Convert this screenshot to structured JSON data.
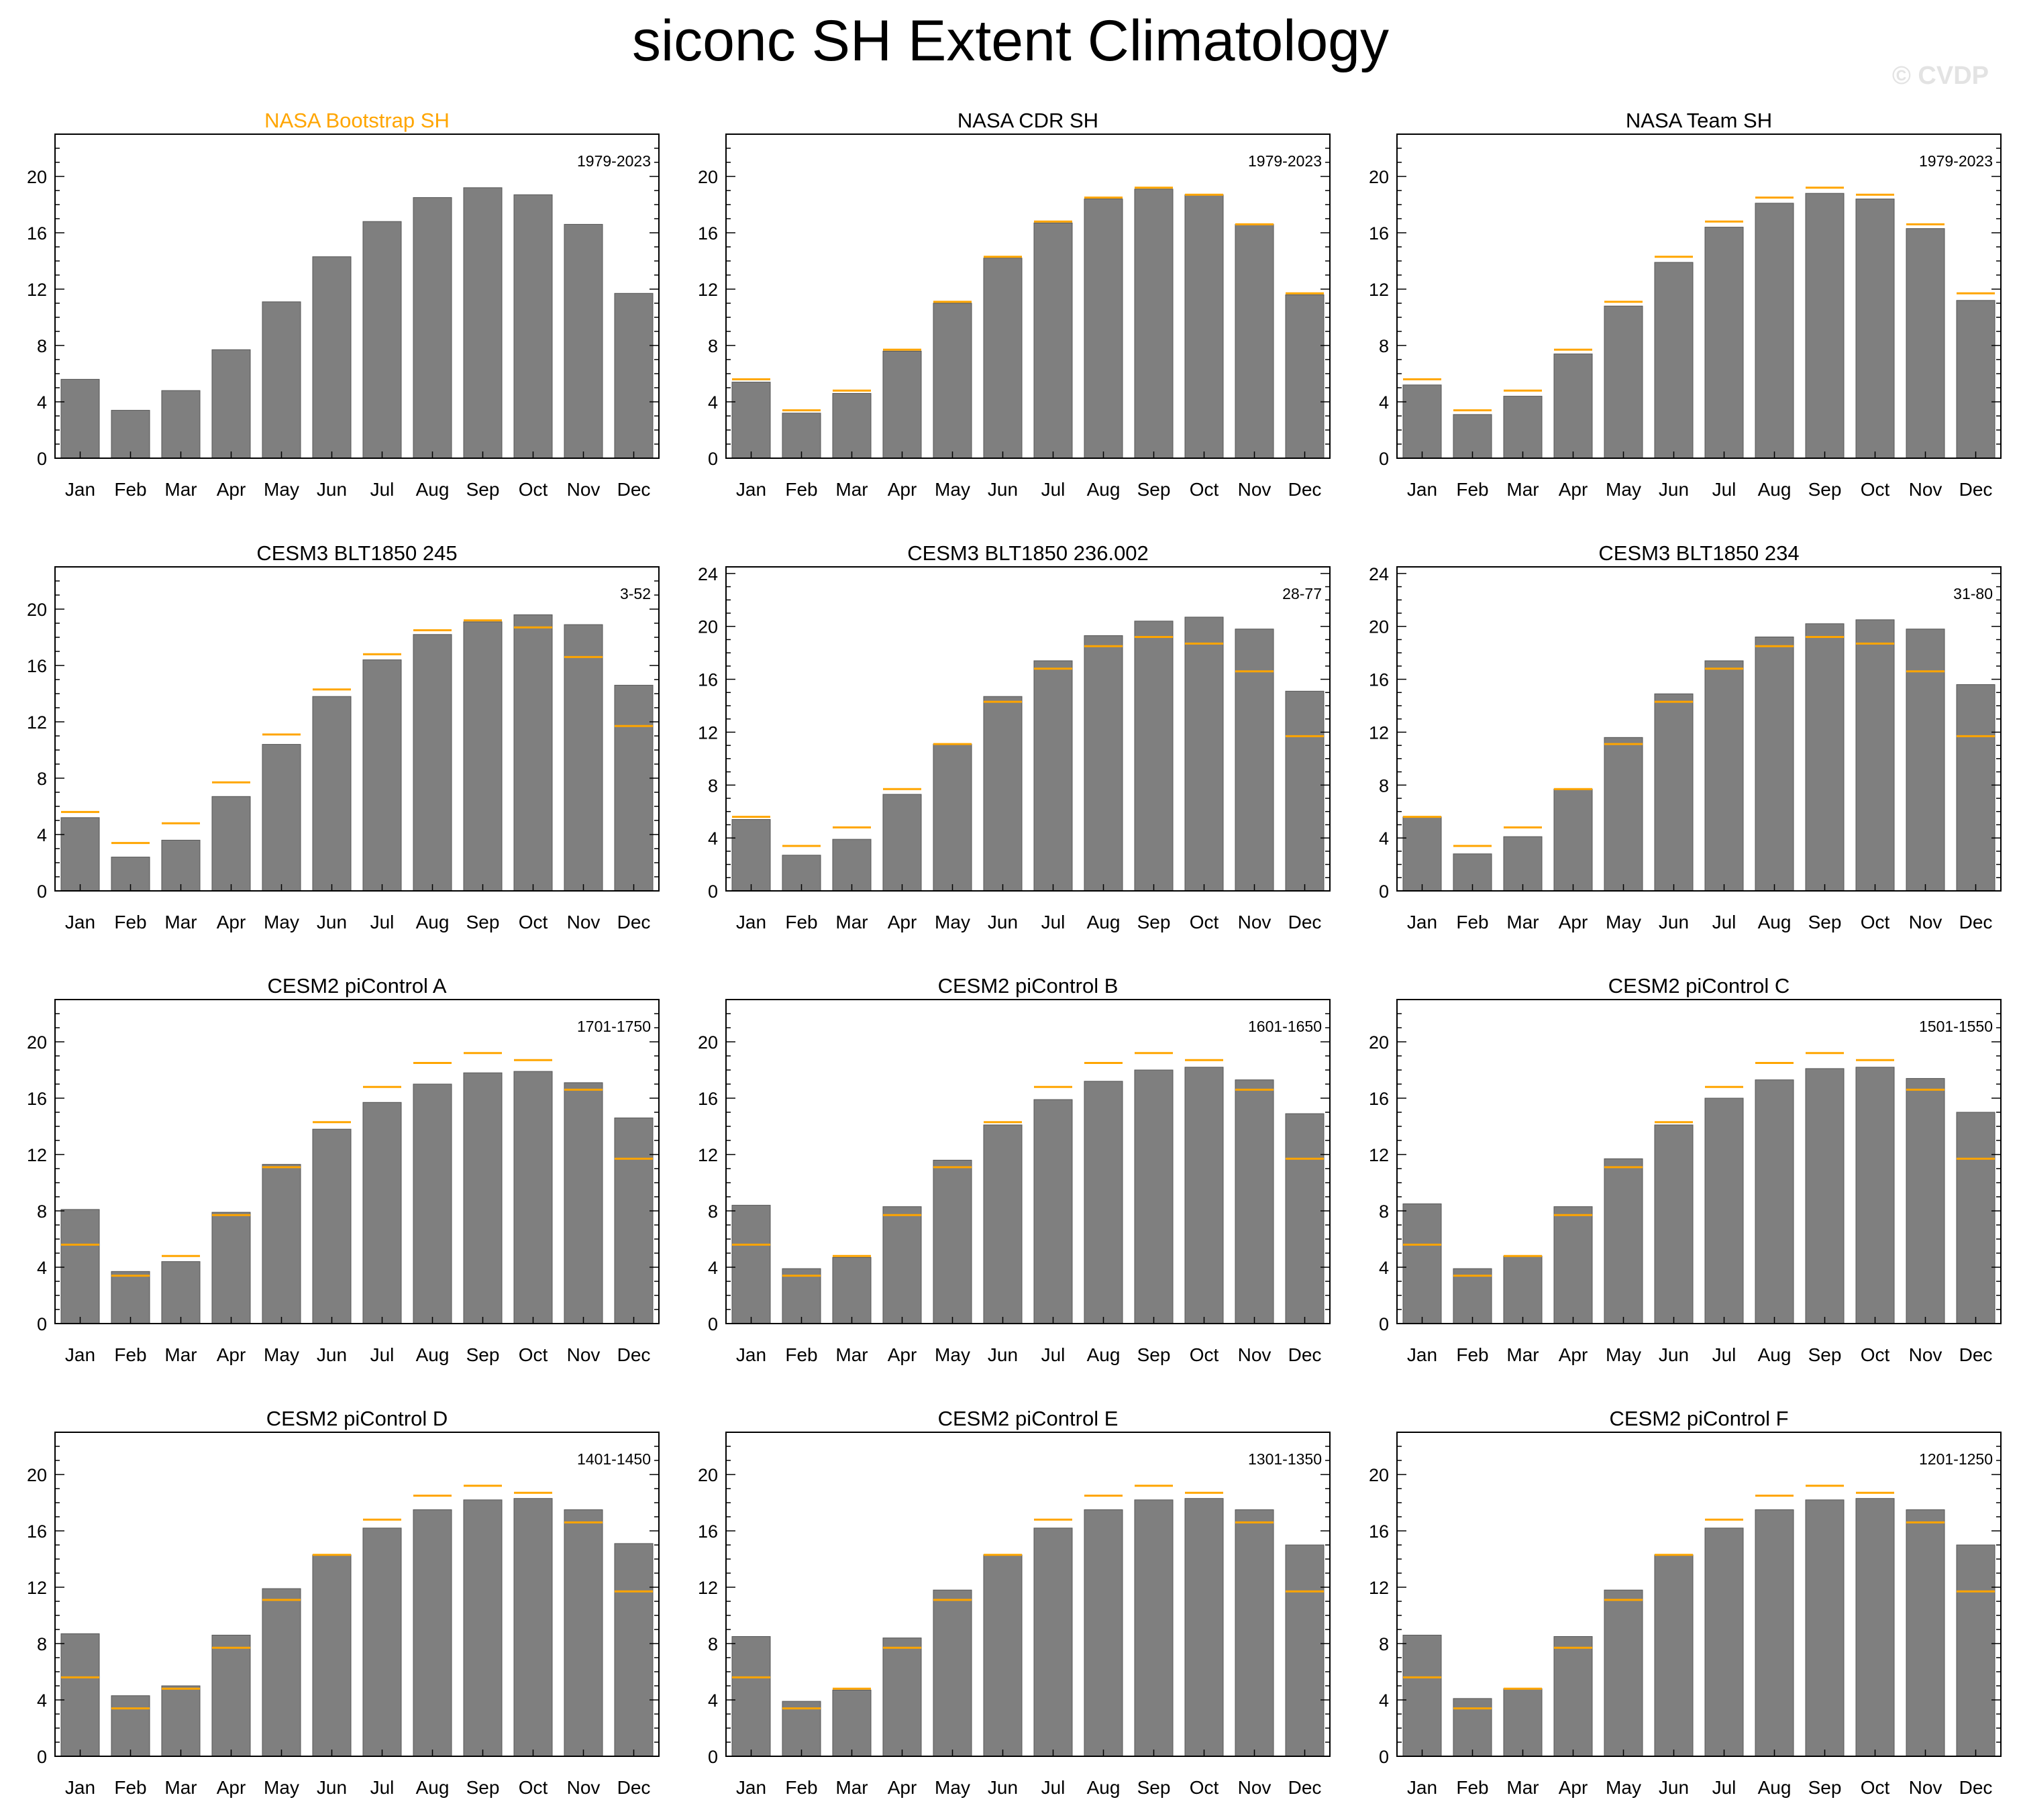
{
  "title": "siconc SH Extent Climatology",
  "watermark": "© CVDP",
  "colors": {
    "bar": "#7f7f7f",
    "reference": "#ffa500",
    "axis": "#000000",
    "highlight_title": "#ffa500"
  },
  "chart_data": {
    "type": "bar",
    "categories": [
      "Jan",
      "Feb",
      "Mar",
      "Apr",
      "May",
      "Jun",
      "Jul",
      "Aug",
      "Sep",
      "Oct",
      "Nov",
      "Dec"
    ],
    "reference_series": {
      "name": "NASA Bootstrap SH",
      "values": [
        5.6,
        3.4,
        4.8,
        7.7,
        11.1,
        14.3,
        16.8,
        18.5,
        19.2,
        18.7,
        16.6,
        11.7
      ]
    },
    "panels": [
      {
        "title": "NASA Bootstrap SH",
        "period": "1979-2023",
        "highlight": true,
        "show_reference": false,
        "ymax": 23,
        "yticks": [
          0,
          4,
          8,
          12,
          16,
          20
        ],
        "values": [
          5.6,
          3.4,
          4.8,
          7.7,
          11.1,
          14.3,
          16.8,
          18.5,
          19.2,
          18.7,
          16.6,
          11.7
        ]
      },
      {
        "title": "NASA CDR SH",
        "period": "1979-2023",
        "highlight": false,
        "show_reference": true,
        "ymax": 23,
        "yticks": [
          0,
          4,
          8,
          12,
          16,
          20
        ],
        "values": [
          5.4,
          3.2,
          4.6,
          7.6,
          11.0,
          14.2,
          16.7,
          18.4,
          19.1,
          18.7,
          16.6,
          11.6
        ]
      },
      {
        "title": "NASA Team SH",
        "period": "1979-2023",
        "highlight": false,
        "show_reference": true,
        "ymax": 23,
        "yticks": [
          0,
          4,
          8,
          12,
          16,
          20
        ],
        "values": [
          5.2,
          3.1,
          4.4,
          7.4,
          10.8,
          13.9,
          16.4,
          18.1,
          18.8,
          18.4,
          16.3,
          11.2
        ]
      },
      {
        "title": "CESM3 BLT1850 245",
        "period": "3-52",
        "highlight": false,
        "show_reference": true,
        "ymax": 23,
        "yticks": [
          0,
          4,
          8,
          12,
          16,
          20
        ],
        "values": [
          5.2,
          2.4,
          3.6,
          6.7,
          10.4,
          13.8,
          16.4,
          18.2,
          19.1,
          19.6,
          18.9,
          14.6
        ]
      },
      {
        "title": "CESM3 BLT1850 236.002",
        "period": "28-77",
        "highlight": false,
        "show_reference": true,
        "ymax": 24.5,
        "yticks": [
          0,
          4,
          8,
          12,
          16,
          20,
          24
        ],
        "values": [
          5.4,
          2.7,
          3.9,
          7.3,
          11.1,
          14.7,
          17.4,
          19.3,
          20.4,
          20.7,
          19.8,
          15.1
        ]
      },
      {
        "title": "CESM3 BLT1850 234",
        "period": "31-80",
        "highlight": false,
        "show_reference": true,
        "ymax": 24.5,
        "yticks": [
          0,
          4,
          8,
          12,
          16,
          20,
          24
        ],
        "values": [
          5.6,
          2.8,
          4.1,
          7.7,
          11.6,
          14.9,
          17.4,
          19.2,
          20.2,
          20.5,
          19.8,
          15.6
        ]
      },
      {
        "title": "CESM2 piControl A",
        "period": "1701-1750",
        "highlight": false,
        "show_reference": true,
        "ymax": 23,
        "yticks": [
          0,
          4,
          8,
          12,
          16,
          20
        ],
        "values": [
          8.1,
          3.7,
          4.4,
          7.9,
          11.3,
          13.8,
          15.7,
          17.0,
          17.8,
          17.9,
          17.1,
          14.6
        ]
      },
      {
        "title": "CESM2 piControl B",
        "period": "1601-1650",
        "highlight": false,
        "show_reference": true,
        "ymax": 23,
        "yticks": [
          0,
          4,
          8,
          12,
          16,
          20
        ],
        "values": [
          8.4,
          3.9,
          4.7,
          8.3,
          11.6,
          14.1,
          15.9,
          17.2,
          18.0,
          18.2,
          17.3,
          14.9
        ]
      },
      {
        "title": "CESM2 piControl C",
        "period": "1501-1550",
        "highlight": false,
        "show_reference": true,
        "ymax": 23,
        "yticks": [
          0,
          4,
          8,
          12,
          16,
          20
        ],
        "values": [
          8.5,
          3.9,
          4.8,
          8.3,
          11.7,
          14.1,
          16.0,
          17.3,
          18.1,
          18.2,
          17.4,
          15.0
        ]
      },
      {
        "title": "CESM2 piControl D",
        "period": "1401-1450",
        "highlight": false,
        "show_reference": true,
        "ymax": 23,
        "yticks": [
          0,
          4,
          8,
          12,
          16,
          20
        ],
        "values": [
          8.7,
          4.3,
          5.0,
          8.6,
          11.9,
          14.3,
          16.2,
          17.5,
          18.2,
          18.3,
          17.5,
          15.1
        ]
      },
      {
        "title": "CESM2 piControl E",
        "period": "1301-1350",
        "highlight": false,
        "show_reference": true,
        "ymax": 23,
        "yticks": [
          0,
          4,
          8,
          12,
          16,
          20
        ],
        "values": [
          8.5,
          3.9,
          4.7,
          8.4,
          11.8,
          14.3,
          16.2,
          17.5,
          18.2,
          18.3,
          17.5,
          15.0
        ]
      },
      {
        "title": "CESM2 piControl F",
        "period": "1201-1250",
        "highlight": false,
        "show_reference": true,
        "ymax": 23,
        "yticks": [
          0,
          4,
          8,
          12,
          16,
          20
        ],
        "values": [
          8.6,
          4.1,
          4.8,
          8.5,
          11.8,
          14.3,
          16.2,
          17.5,
          18.2,
          18.3,
          17.5,
          15.0
        ]
      }
    ]
  }
}
